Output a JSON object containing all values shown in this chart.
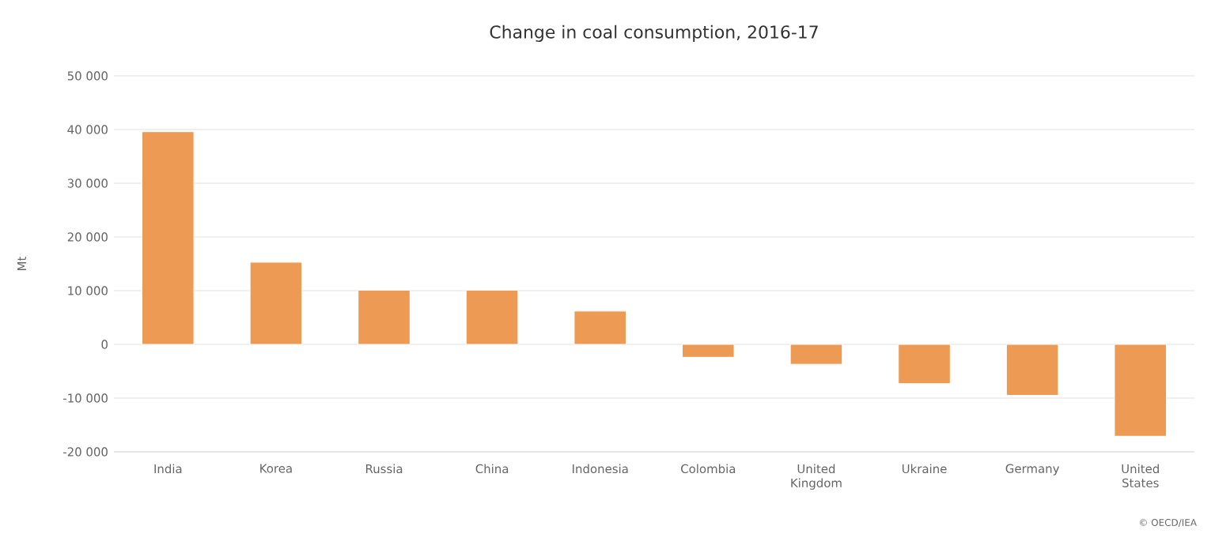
{
  "chart_data": {
    "type": "bar",
    "title": "Change in coal consumption, 2016-17",
    "ylabel": "Mt",
    "categories": [
      "India",
      "Korea",
      "Russia",
      "China",
      "Indonesia",
      "Colombia",
      "United Kingdom",
      "Ukraine",
      "Germany",
      "United States"
    ],
    "values": [
      39600,
      15300,
      10100,
      10100,
      6200,
      -2400,
      -3700,
      -7300,
      -9500,
      -17100
    ],
    "color": "#ec9a54",
    "ylim": [
      -20000,
      50000
    ],
    "yticks": [
      {
        "value": -20000,
        "label": "-20 000"
      },
      {
        "value": -10000,
        "label": "-10 000"
      },
      0,
      {
        "value": 10000,
        "label": "10 000"
      },
      {
        "value": 20000,
        "label": "20 000"
      },
      {
        "value": 30000,
        "label": "30 000"
      },
      {
        "value": 40000,
        "label": "40 000"
      },
      {
        "value": 50000,
        "label": "50 000"
      }
    ],
    "grid": "y",
    "annotations": [
      "© OECD/IEA"
    ]
  }
}
